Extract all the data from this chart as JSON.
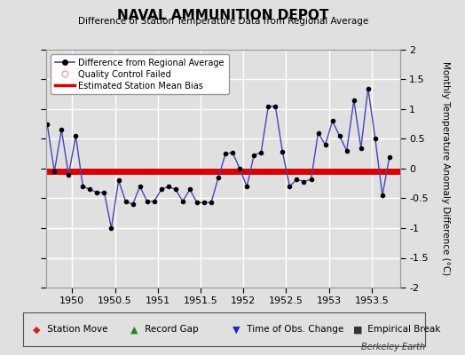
{
  "title": "NAVAL AMMUNITION DEPOT",
  "subtitle": "Difference of Station Temperature Data from Regional Average",
  "ylabel": "Monthly Temperature Anomaly Difference (°C)",
  "bg_color": "#e0e0e0",
  "plot_bg_color": "#e0e0e0",
  "grid_color": "#ffffff",
  "line_color": "#4444bb",
  "marker_color": "#000000",
  "bias_color": "#dd0000",
  "xlim": [
    1949.7,
    1953.83
  ],
  "ylim": [
    -2.0,
    2.0
  ],
  "xticks": [
    1950,
    1950.5,
    1951,
    1951.5,
    1952,
    1952.5,
    1953,
    1953.5
  ],
  "yticks": [
    -2,
    -1.5,
    -1,
    -0.5,
    0,
    0.5,
    1,
    1.5,
    2
  ],
  "bias_y": -0.04,
  "watermark": "Berkeley Earth",
  "x_data": [
    1949.708,
    1949.792,
    1949.875,
    1949.958,
    1950.042,
    1950.125,
    1950.208,
    1950.292,
    1950.375,
    1950.458,
    1950.542,
    1950.625,
    1950.708,
    1950.792,
    1950.875,
    1950.958,
    1951.042,
    1951.125,
    1951.208,
    1951.292,
    1951.375,
    1951.458,
    1951.542,
    1951.625,
    1951.708,
    1951.792,
    1951.875,
    1951.958,
    1952.042,
    1952.125,
    1952.208,
    1952.292,
    1952.375,
    1952.458,
    1952.542,
    1952.625,
    1952.708,
    1952.792,
    1952.875,
    1952.958,
    1953.042,
    1953.125,
    1953.208,
    1953.292,
    1953.375,
    1953.458,
    1953.542,
    1953.625,
    1953.708
  ],
  "y_data": [
    0.75,
    -0.05,
    0.65,
    -0.1,
    0.55,
    -0.3,
    -0.35,
    -0.4,
    -0.4,
    -1.0,
    -0.2,
    -0.55,
    -0.6,
    -0.3,
    -0.55,
    -0.55,
    -0.35,
    -0.3,
    -0.35,
    -0.55,
    -0.35,
    -0.57,
    -0.57,
    -0.57,
    -0.15,
    0.25,
    0.27,
    0.0,
    -0.3,
    0.23,
    0.27,
    1.05,
    1.05,
    0.28,
    -0.3,
    -0.18,
    -0.22,
    -0.18,
    0.6,
    0.4,
    0.8,
    0.55,
    0.3,
    1.15,
    0.35,
    1.35,
    0.5,
    -0.45,
    0.2
  ]
}
